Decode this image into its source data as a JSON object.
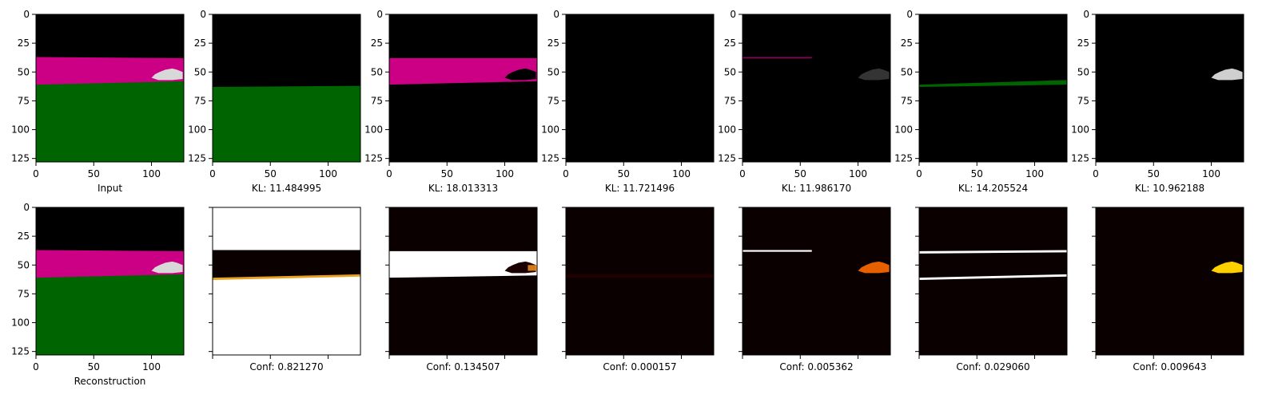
{
  "chart_data": {
    "type": "image-grid",
    "axis": {
      "xticks": [
        "0",
        "50",
        "100"
      ],
      "yticks": [
        "0",
        "25",
        "50",
        "75",
        "100",
        "125"
      ],
      "xlim": [
        0,
        128
      ],
      "ylim": [
        128,
        0
      ]
    },
    "colors": {
      "black": "#000000",
      "magenta": "#cc0084",
      "green": "#006500",
      "heat_low": "#0b0000",
      "heat_high": "#ffffff"
    },
    "top_row": [
      {
        "label": "Input",
        "kind": "input"
      },
      {
        "label": "KL: 11.484995",
        "kind": "green_mask",
        "kl": 11.484995
      },
      {
        "label": "KL: 18.013313",
        "kind": "magenta_mask",
        "kl": 18.013313
      },
      {
        "label": "KL: 11.721496",
        "kind": "empty",
        "kl": 11.721496
      },
      {
        "label": "KL: 11.986170",
        "kind": "thin_lines",
        "kl": 11.98617
      },
      {
        "label": "KL: 14.205524",
        "kind": "green_line",
        "kl": 14.205524
      },
      {
        "label": "KL: 10.962188",
        "kind": "car_only",
        "kl": 10.962188
      }
    ],
    "bottom_row": [
      {
        "label": "Reconstruction",
        "kind": "input"
      },
      {
        "label": "Conf: 0.821270",
        "kind": "conf_ground",
        "conf": 0.82127
      },
      {
        "label": "Conf: 0.134507",
        "kind": "conf_road",
        "conf": 0.134507
      },
      {
        "label": "Conf: 0.000157",
        "kind": "conf_faint",
        "conf": 0.000157
      },
      {
        "label": "Conf: 0.005362",
        "kind": "conf_lines",
        "conf": 0.005362
      },
      {
        "label": "Conf: 0.029060",
        "kind": "conf_edges",
        "conf": 0.02906
      },
      {
        "label": "Conf: 0.009643",
        "kind": "conf_car",
        "conf": 0.009643
      }
    ]
  }
}
